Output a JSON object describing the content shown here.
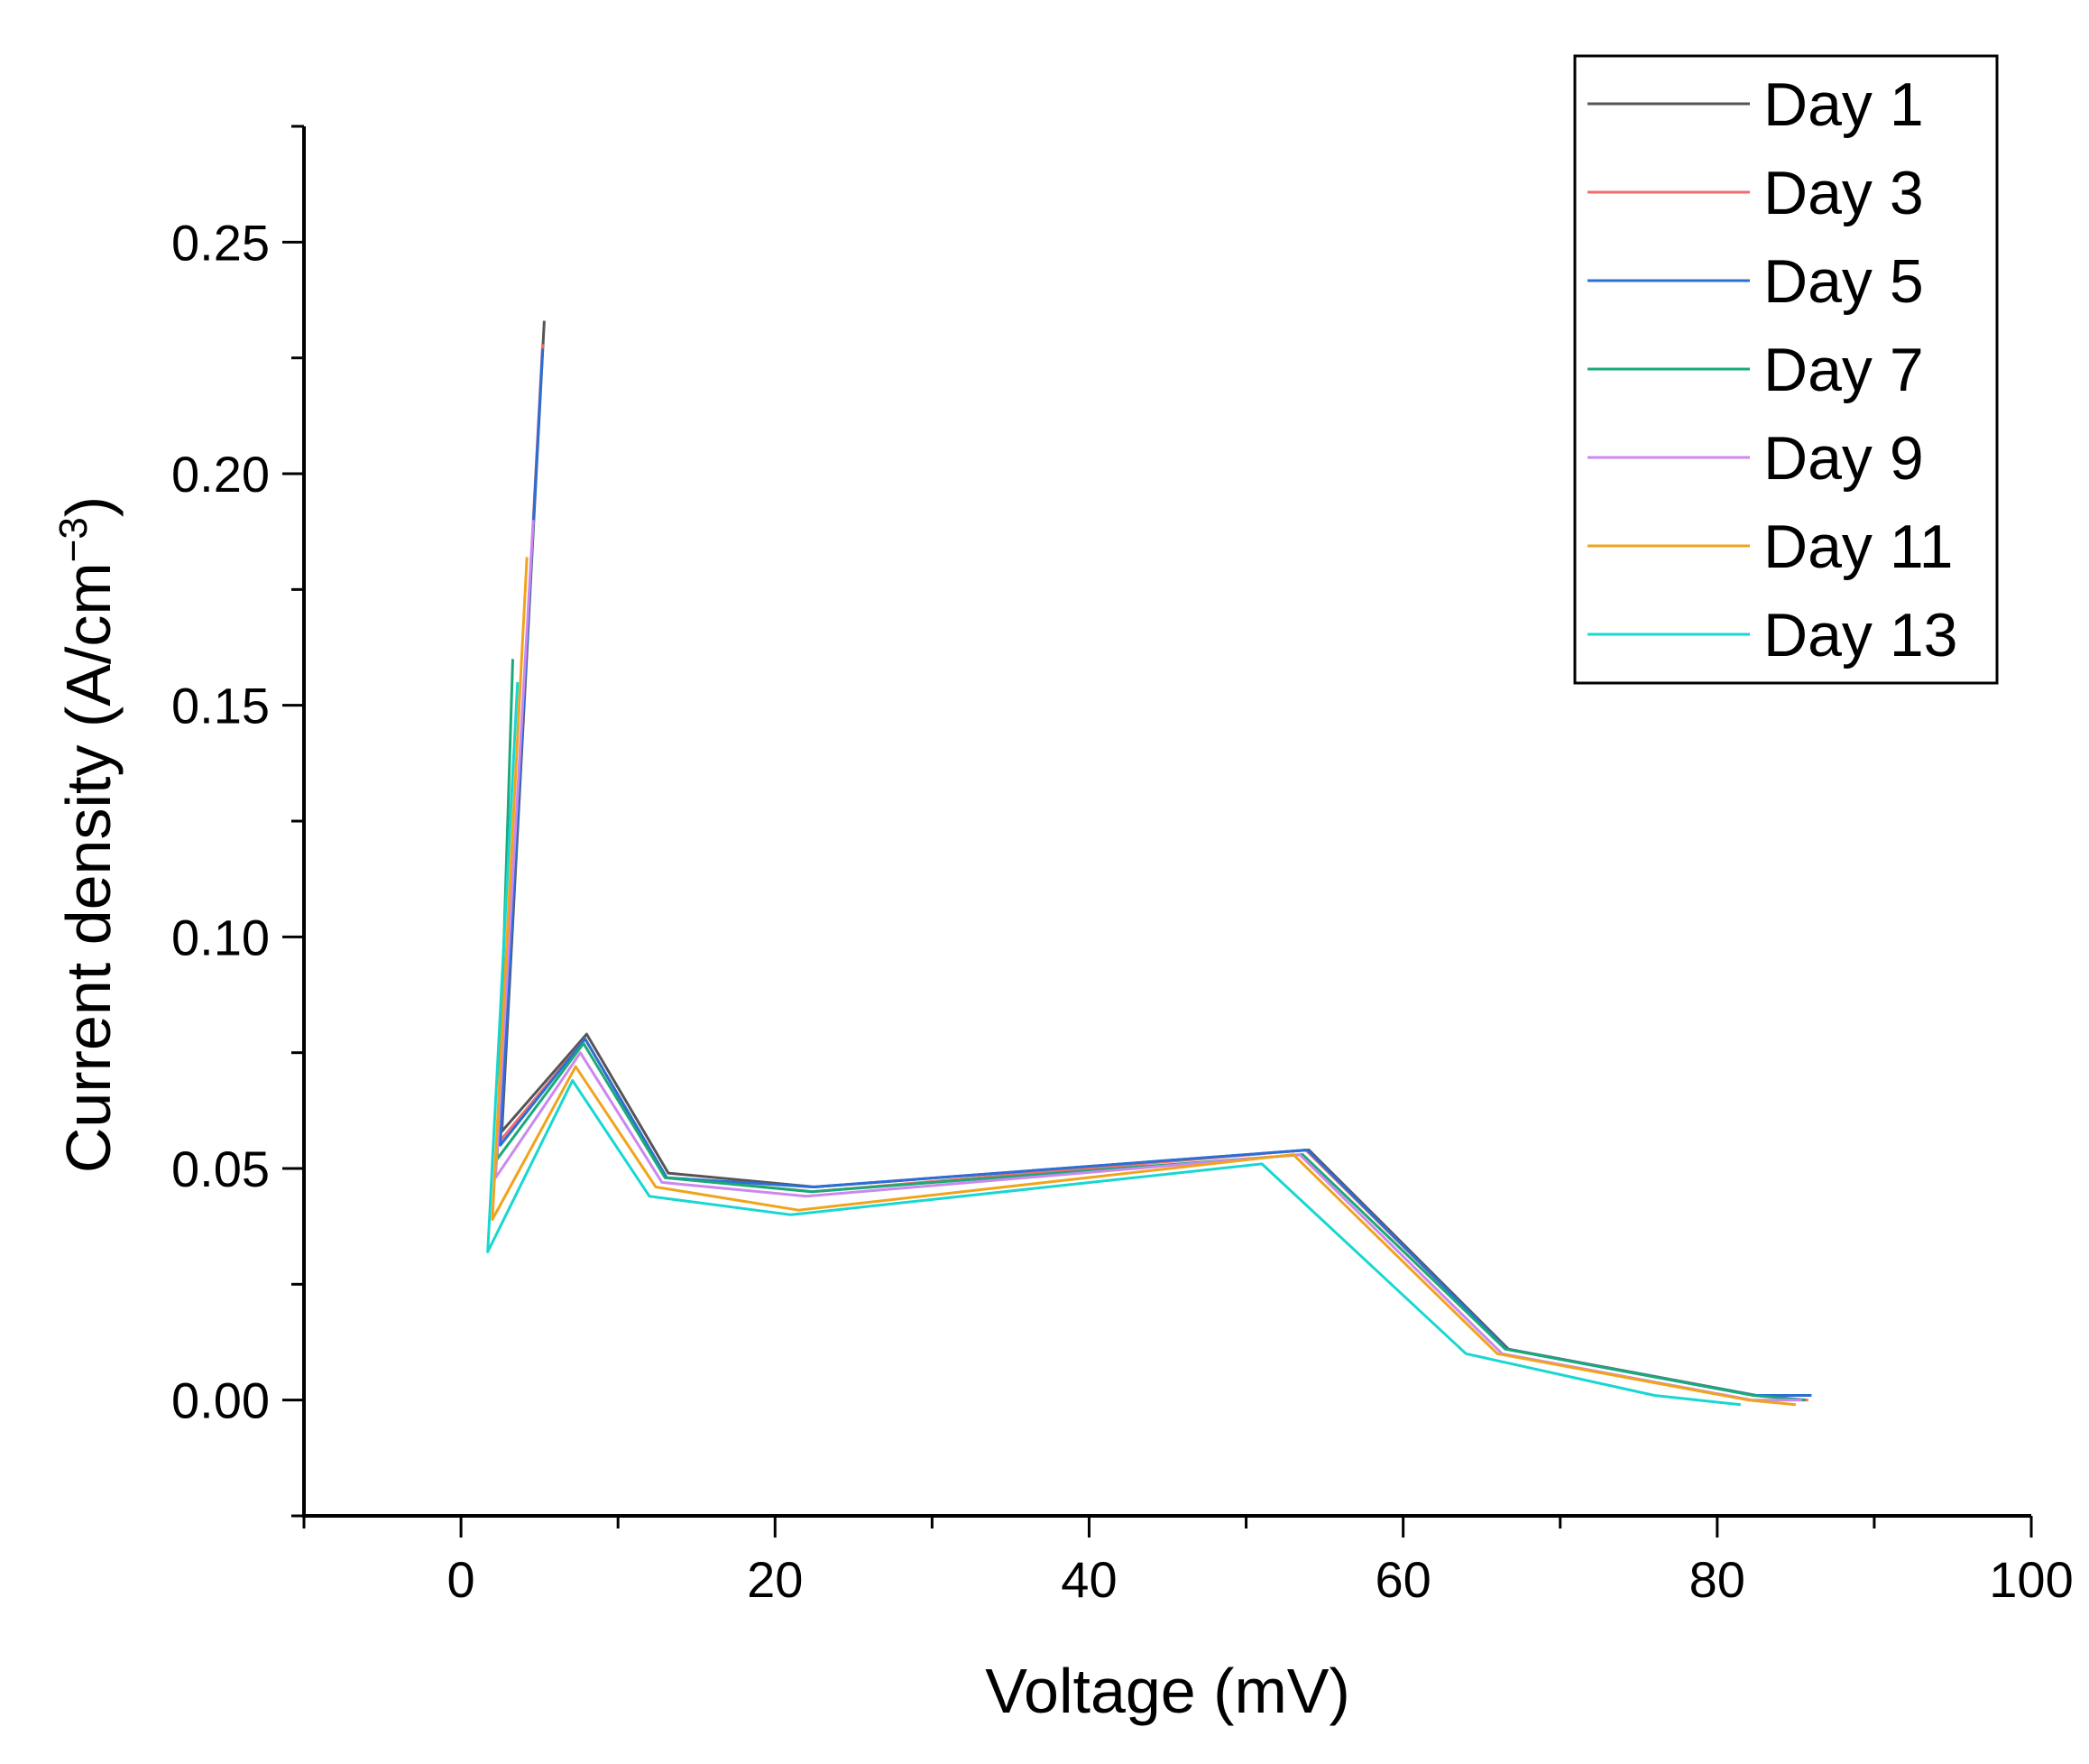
{
  "chart_data": {
    "type": "line",
    "title": "",
    "xlabel": "Voltage (mV)",
    "ylabel": "Current density (A/cm",
    "ylabel_superscript": "−3",
    "ylabel_close": ")",
    "xlim": [
      -10,
      100
    ],
    "ylim": [
      -0.025,
      0.275
    ],
    "xticks": [
      0,
      20,
      40,
      60,
      80,
      100
    ],
    "xtick_labels": [
      "0",
      "20",
      "40",
      "60",
      "80",
      "100"
    ],
    "yticks": [
      0.0,
      0.05,
      0.1,
      0.15,
      0.2,
      0.25
    ],
    "ytick_labels": [
      "0.00",
      "0.05",
      "0.10",
      "0.15",
      "0.20",
      "0.25"
    ],
    "grid": false,
    "legend_position": "top-right",
    "series": [
      {
        "name": "Day 1",
        "color": "#555555",
        "x": [
          5.3,
          2.6,
          8.0,
          13.2,
          22.5,
          54.0,
          66.7,
          82.5,
          86.0
        ],
        "y": [
          0.233,
          0.058,
          0.079,
          0.049,
          0.046,
          0.054,
          0.011,
          0.001,
          0.001
        ]
      },
      {
        "name": "Day 3",
        "color": "#f36b6b",
        "x": [
          5.2,
          2.5,
          7.9,
          13.1,
          22.4,
          53.8,
          66.6,
          82.4,
          85.8
        ],
        "y": [
          0.228,
          0.056,
          0.078,
          0.048,
          0.045,
          0.054,
          0.011,
          0.001,
          0.0
        ]
      },
      {
        "name": "Day 5",
        "color": "#2b6fd6",
        "x": [
          5.2,
          2.5,
          7.9,
          13.1,
          22.4,
          53.9,
          66.6,
          82.4,
          86.0
        ],
        "y": [
          0.227,
          0.055,
          0.078,
          0.048,
          0.046,
          0.054,
          0.011,
          0.001,
          0.001
        ]
      },
      {
        "name": "Day 7",
        "color": "#1aaa77",
        "x": [
          3.3,
          2.3,
          7.8,
          13.0,
          22.3,
          53.6,
          66.5,
          82.3,
          85.6
        ],
        "y": [
          0.16,
          0.052,
          0.077,
          0.048,
          0.045,
          0.053,
          0.011,
          0.001,
          0.0
        ]
      },
      {
        "name": "Day 9",
        "color": "#cc88ee",
        "x": [
          4.6,
          2.2,
          7.6,
          12.8,
          22.0,
          53.4,
          66.3,
          82.2,
          85.4
        ],
        "y": [
          0.19,
          0.048,
          0.075,
          0.047,
          0.044,
          0.053,
          0.01,
          0.0,
          0.0
        ]
      },
      {
        "name": "Day 11",
        "color": "#f0a41c",
        "x": [
          4.2,
          2.0,
          7.3,
          12.4,
          21.5,
          53.0,
          66.0,
          82.0,
          85.0
        ],
        "y": [
          0.182,
          0.039,
          0.072,
          0.046,
          0.041,
          0.053,
          0.01,
          0.0,
          -0.001
        ]
      },
      {
        "name": "Day 13",
        "color": "#18d7d2",
        "x": [
          3.6,
          1.7,
          7.1,
          12.0,
          21.0,
          51.0,
          64.0,
          76.0,
          81.5
        ],
        "y": [
          0.155,
          0.032,
          0.069,
          0.044,
          0.04,
          0.051,
          0.01,
          0.001,
          -0.001
        ]
      }
    ]
  }
}
